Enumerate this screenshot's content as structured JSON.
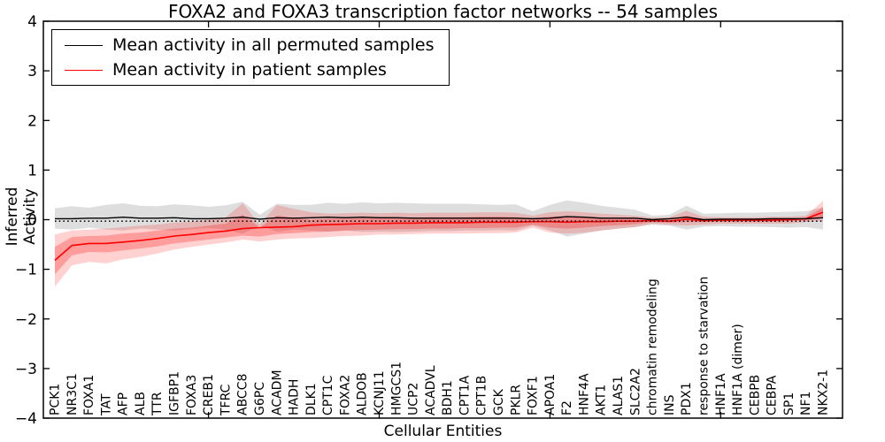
{
  "chart_data": {
    "type": "line",
    "title": "FOXA2 and FOXA3 transcription factor networks -- 54 samples",
    "xlabel": "Cellular Entities",
    "ylabel": "Inferred Activity",
    "ylim": [
      -4,
      4
    ],
    "yticks": [
      4,
      3,
      2,
      1,
      0,
      -1,
      -2,
      -3,
      -4
    ],
    "xticks_major_values": [
      10,
      20,
      30,
      40
    ],
    "grid": false,
    "legend_position": "upper left",
    "categories": [
      "PCK1",
      "NR3C1",
      "FOXA1",
      "TAT",
      "AFP",
      "ALB",
      "TTR",
      "IGFBP1",
      "FOXA3",
      "CREB1",
      "TFRC",
      "ABCC8",
      "G6PC",
      "ACADM",
      "HADH",
      "DLK1",
      "CPT1C",
      "FOXA2",
      "ALDOB",
      "KCNJ11",
      "HMGCS1",
      "UCP2",
      "ACADVL",
      "BDH1",
      "CPT1A",
      "CPT1B",
      "GCK",
      "PKLR",
      "FOXF1",
      "APOA1",
      "F2",
      "HNF4A",
      "AKT1",
      "ALAS1",
      "SLC2A2",
      "chromatin remodeling",
      "INS",
      "PDX1",
      "response to starvation",
      "HNF1A",
      "HNF1A (dimer)",
      "CEBPB",
      "CEBPA",
      "SP1",
      "NF1",
      "NKX2-1"
    ],
    "series": [
      {
        "name": "Mean activity in all permuted samples",
        "color": "#000000",
        "line_style": "solid",
        "values": [
          0.02,
          0.02,
          0.03,
          0.03,
          0.05,
          0.03,
          0.03,
          0.04,
          0.02,
          0.02,
          0.03,
          0.05,
          0.01,
          0.04,
          0.03,
          0.04,
          0.05,
          0.04,
          0.05,
          0.04,
          0.04,
          0.03,
          0.03,
          0.03,
          0.03,
          0.03,
          0.03,
          0.03,
          0.02,
          0.03,
          0.06,
          0.05,
          0.03,
          0.03,
          0.03,
          0.0,
          0.02,
          0.05,
          0.0,
          0.01,
          0.01,
          0.01,
          0.02,
          0.02,
          0.02,
          0.04
        ],
        "band_upper": [
          0.23,
          0.27,
          0.24,
          0.3,
          0.33,
          0.28,
          0.27,
          0.31,
          0.29,
          0.26,
          0.29,
          0.36,
          0.1,
          0.32,
          0.3,
          0.3,
          0.34,
          0.32,
          0.35,
          0.33,
          0.34,
          0.33,
          0.32,
          0.32,
          0.32,
          0.31,
          0.3,
          0.31,
          0.17,
          0.3,
          0.39,
          0.34,
          0.28,
          0.24,
          0.2,
          0.08,
          0.1,
          0.28,
          0.12,
          0.13,
          0.14,
          0.14,
          0.15,
          0.16,
          0.17,
          0.25
        ],
        "band_lower": [
          -0.18,
          -0.2,
          -0.16,
          -0.2,
          -0.22,
          -0.18,
          -0.2,
          -0.22,
          -0.19,
          -0.17,
          -0.2,
          -0.28,
          -0.12,
          -0.24,
          -0.2,
          -0.22,
          -0.24,
          -0.22,
          -0.25,
          -0.24,
          -0.25,
          -0.24,
          -0.23,
          -0.23,
          -0.22,
          -0.22,
          -0.21,
          -0.22,
          -0.12,
          -0.22,
          -0.34,
          -0.28,
          -0.22,
          -0.18,
          -0.15,
          -0.1,
          -0.12,
          -0.2,
          -0.14,
          -0.13,
          -0.14,
          -0.14,
          -0.15,
          -0.16,
          -0.15,
          -0.2
        ],
        "band_color": "#000000",
        "band_opacity": 0.13
      },
      {
        "name": "Mean activity in patient samples",
        "color": "#ff0000",
        "line_style": "solid",
        "values": [
          -0.82,
          -0.52,
          -0.48,
          -0.48,
          -0.45,
          -0.42,
          -0.38,
          -0.33,
          -0.3,
          -0.26,
          -0.23,
          -0.18,
          -0.16,
          -0.15,
          -0.14,
          -0.11,
          -0.1,
          -0.09,
          -0.08,
          -0.08,
          -0.07,
          -0.07,
          -0.06,
          -0.06,
          -0.06,
          -0.05,
          -0.05,
          -0.05,
          -0.04,
          -0.04,
          -0.05,
          -0.04,
          -0.04,
          -0.03,
          -0.03,
          -0.02,
          -0.03,
          0.01,
          -0.02,
          -0.01,
          -0.01,
          -0.01,
          -0.01,
          0.0,
          0.02,
          0.15
        ],
        "band_upper": [
          -0.3,
          -0.22,
          -0.2,
          -0.18,
          -0.15,
          -0.12,
          -0.1,
          -0.06,
          -0.04,
          0.0,
          0.05,
          0.33,
          -0.1,
          0.3,
          0.22,
          0.15,
          0.12,
          0.13,
          0.14,
          0.13,
          0.14,
          0.13,
          0.14,
          0.14,
          0.14,
          0.15,
          0.15,
          0.14,
          0.08,
          0.15,
          0.17,
          0.15,
          0.12,
          0.1,
          0.08,
          0.04,
          0.05,
          0.18,
          0.06,
          0.05,
          0.05,
          0.05,
          0.06,
          0.06,
          0.08,
          0.38
        ],
        "band_lower": [
          -1.35,
          -0.92,
          -0.85,
          -0.88,
          -0.8,
          -0.75,
          -0.68,
          -0.6,
          -0.55,
          -0.5,
          -0.46,
          -0.4,
          -0.44,
          -0.4,
          -0.38,
          -0.37,
          -0.35,
          -0.33,
          -0.32,
          -0.3,
          -0.3,
          -0.29,
          -0.28,
          -0.28,
          -0.28,
          -0.27,
          -0.27,
          -0.26,
          -0.16,
          -0.26,
          -0.28,
          -0.26,
          -0.22,
          -0.18,
          -0.15,
          -0.08,
          -0.1,
          -0.12,
          -0.1,
          -0.08,
          -0.08,
          -0.08,
          -0.08,
          -0.08,
          -0.05,
          -0.02
        ],
        "band_color": "#ff0000",
        "band_opacity": 0.18,
        "inner_band_upper": [
          -0.55,
          -0.35,
          -0.33,
          -0.32,
          -0.28,
          -0.26,
          -0.22,
          -0.18,
          -0.16,
          -0.12,
          -0.08,
          0.1,
          -0.16,
          0.08,
          0.04,
          0.0,
          0.02,
          0.02,
          0.03,
          0.03,
          0.04,
          0.04,
          0.05,
          0.05,
          0.05,
          0.06,
          0.06,
          0.05,
          0.02,
          0.06,
          0.07,
          0.06,
          0.04,
          0.03,
          0.02,
          0.01,
          0.0,
          0.08,
          0.01,
          0.01,
          0.01,
          0.01,
          0.02,
          0.02,
          0.04,
          0.25
        ],
        "inner_band_lower": [
          -1.1,
          -0.72,
          -0.65,
          -0.66,
          -0.62,
          -0.58,
          -0.54,
          -0.48,
          -0.44,
          -0.4,
          -0.36,
          -0.32,
          -0.34,
          -0.29,
          -0.27,
          -0.25,
          -0.24,
          -0.22,
          -0.21,
          -0.2,
          -0.19,
          -0.19,
          -0.18,
          -0.18,
          -0.17,
          -0.17,
          -0.16,
          -0.16,
          -0.1,
          -0.16,
          -0.18,
          -0.16,
          -0.13,
          -0.11,
          -0.09,
          -0.05,
          -0.06,
          -0.05,
          -0.05,
          -0.04,
          -0.04,
          -0.04,
          -0.04,
          -0.03,
          -0.02,
          0.05
        ],
        "inner_band_opacity": 0.25
      }
    ],
    "reference_line": {
      "y": -0.03,
      "style": "dotted",
      "color": "#000000"
    }
  }
}
